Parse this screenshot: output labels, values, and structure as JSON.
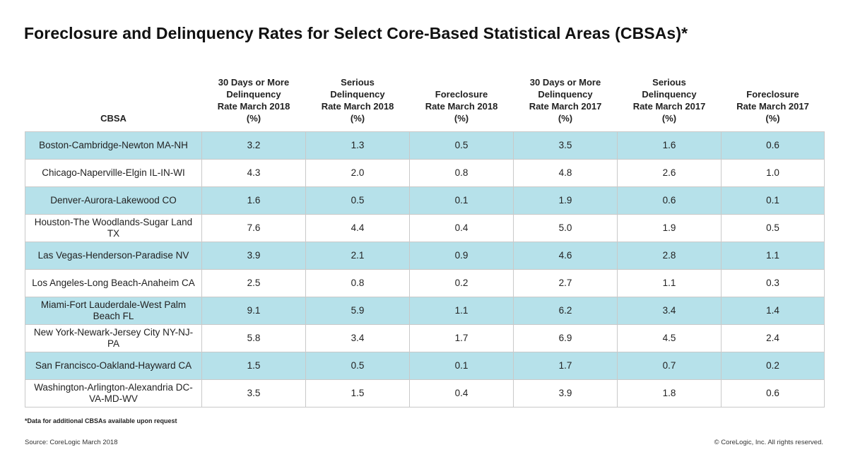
{
  "title": "Foreclosure and Delinquency Rates for Select Core-Based Statistical Areas (CBSAs)*",
  "headers": [
    [
      "CBSA"
    ],
    [
      "30 Days or More",
      "Delinquency",
      "Rate March 2018",
      "(%)"
    ],
    [
      "Serious",
      "Delinquency",
      "Rate March 2018",
      "(%)"
    ],
    [
      "Foreclosure",
      "Rate March 2018",
      "(%)"
    ],
    [
      "30 Days or More",
      "Delinquency",
      "Rate March 2017",
      "(%)"
    ],
    [
      "Serious",
      "Delinquency",
      "Rate March 2017",
      "(%)"
    ],
    [
      "Foreclosure",
      "Rate March 2017",
      "(%)"
    ]
  ],
  "rows": [
    [
      "Boston-Cambridge-Newton MA-NH",
      "3.2",
      "1.3",
      "0.5",
      "3.5",
      "1.6",
      "0.6"
    ],
    [
      "Chicago-Naperville-Elgin IL-IN-WI",
      "4.3",
      "2.0",
      "0.8",
      "4.8",
      "2.6",
      "1.0"
    ],
    [
      "Denver-Aurora-Lakewood CO",
      "1.6",
      "0.5",
      "0.1",
      "1.9",
      "0.6",
      "0.1"
    ],
    [
      "Houston-The Woodlands-Sugar Land TX",
      "7.6",
      "4.4",
      "0.4",
      "5.0",
      "1.9",
      "0.5"
    ],
    [
      "Las Vegas-Henderson-Paradise NV",
      "3.9",
      "2.1",
      "0.9",
      "4.6",
      "2.8",
      "1.1"
    ],
    [
      "Los Angeles-Long Beach-Ana­heim CA",
      "2.5",
      "0.8",
      "0.2",
      "2.7",
      "1.1",
      "0.3"
    ],
    [
      "Miami-Fort Lauderdale-West Palm Beach FL",
      "9.1",
      "5.9",
      "1.1",
      "6.2",
      "3.4",
      "1.4"
    ],
    [
      "New York-Newark-Jersey City NY-NJ-PA",
      "5.8",
      "3.4",
      "1.7",
      "6.9",
      "4.5",
      "2.4"
    ],
    [
      "San Francisco-Oakland-Hayward CA",
      "1.5",
      "0.5",
      "0.1",
      "1.7",
      "0.7",
      "0.2"
    ],
    [
      "Washington-Arlington-Alexan­dria DC-VA-MD-WV",
      "3.5",
      "1.5",
      "0.4",
      "3.9",
      "1.8",
      "0.6"
    ]
  ],
  "footnote": "*Data for additional CBSAs available upon request",
  "source": "Source: CoreLogic March 2018",
  "copyright": "© CoreLogic, Inc. All rights reserved."
}
